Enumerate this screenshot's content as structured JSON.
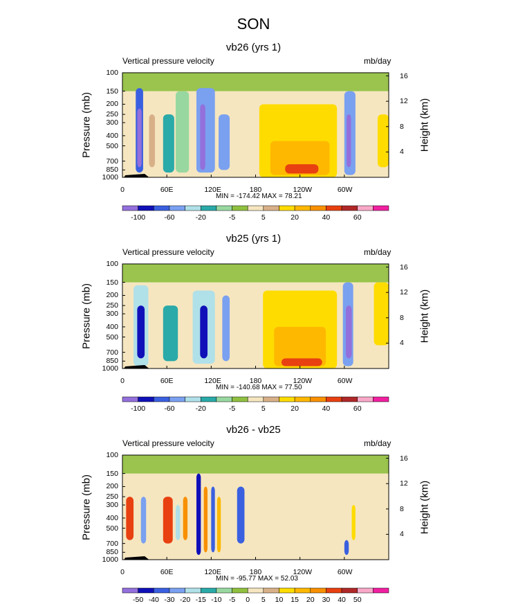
{
  "figure": {
    "title": "SON",
    "colors": {
      "scale_a": [
        "#9370db",
        "#1010b8",
        "#3a60e0",
        "#7aa0f0",
        "#b0e0e8",
        "#2aaaa8",
        "#98d8a0",
        "#90c040",
        "#f5e6c0",
        "#d8b088",
        "#ffdc00",
        "#ffb800",
        "#f89000",
        "#e84010",
        "#b02828",
        "#f8a8c8",
        "#f020a0"
      ],
      "scale_b": [
        "#9370db",
        "#1010b8",
        "#3a60e0",
        "#7aa0f0",
        "#b0e0e8",
        "#2aaaa8",
        "#98d8a0",
        "#90c040",
        "#f5e6c0",
        "#d8b088",
        "#ffdc00",
        "#ffb800",
        "#f89000",
        "#e84010",
        "#b02828",
        "#f8a8c8",
        "#f020a0"
      ]
    }
  },
  "chart_data": [
    {
      "type": "heatmap",
      "title": "vb26 (yrs 1)",
      "left_label": "Vertical pressure velocity",
      "right_label": "mb/day",
      "xlabel": "",
      "ylabel": "Pressure (mb)",
      "ylabel_right": "Height (km)",
      "x_ticks": [
        "0",
        "60E",
        "120E",
        "180",
        "120W",
        "60W"
      ],
      "y_ticks": [
        "100",
        "150",
        "200",
        "250",
        "300",
        "400",
        "500",
        "700",
        "850",
        "1000"
      ],
      "y_right_ticks": [
        "16",
        "12",
        "8",
        "4"
      ],
      "stats": "MIN = -174.42  MAX =  78.21",
      "colorbar_labels": [
        "-100",
        "-60",
        "-20",
        "-5",
        "5",
        "20",
        "40",
        "60"
      ],
      "regions": [
        {
          "lon": [
            18,
            28
          ],
          "p": [
            140,
            900
          ],
          "v": -80
        },
        {
          "lon": [
            20,
            26
          ],
          "p": [
            220,
            800
          ],
          "v": -150
        },
        {
          "lon": [
            36,
            44
          ],
          "p": [
            250,
            800
          ],
          "v": 10
        },
        {
          "lon": [
            55,
            70
          ],
          "p": [
            250,
            900
          ],
          "v": -20
        },
        {
          "lon": [
            72,
            90
          ],
          "p": [
            150,
            900
          ],
          "v": -10
        },
        {
          "lon": [
            100,
            125
          ],
          "p": [
            140,
            900
          ],
          "v": -60
        },
        {
          "lon": [
            105,
            112
          ],
          "p": [
            200,
            850
          ],
          "v": -120
        },
        {
          "lon": [
            130,
            145
          ],
          "p": [
            250,
            850
          ],
          "v": -60
        },
        {
          "lon": [
            185,
            290
          ],
          "p": [
            200,
            1000
          ],
          "v": 15
        },
        {
          "lon": [
            200,
            280
          ],
          "p": [
            450,
            950
          ],
          "v": 25
        },
        {
          "lon": [
            220,
            265
          ],
          "p": [
            750,
            920
          ],
          "v": 45
        },
        {
          "lon": [
            300,
            315
          ],
          "p": [
            150,
            950
          ],
          "v": -60
        },
        {
          "lon": [
            303,
            309
          ],
          "p": [
            250,
            800
          ],
          "v": -120
        },
        {
          "lon": [
            345,
            360
          ],
          "p": [
            250,
            800
          ],
          "v": 15
        }
      ]
    },
    {
      "type": "heatmap",
      "title": "vb25 (yrs 1)",
      "left_label": "Vertical pressure velocity",
      "right_label": "mb/day",
      "xlabel": "",
      "ylabel": "Pressure (mb)",
      "ylabel_right": "Height (km)",
      "x_ticks": [
        "0",
        "60E",
        "120E",
        "180",
        "120W",
        "60W"
      ],
      "y_ticks": [
        "100",
        "150",
        "200",
        "250",
        "300",
        "400",
        "500",
        "700",
        "850",
        "1000"
      ],
      "y_right_ticks": [
        "16",
        "12",
        "8",
        "4"
      ],
      "stats": "MIN = -140.68  MAX =  77.50",
      "colorbar_labels": [
        "-100",
        "-60",
        "-20",
        "-5",
        "5",
        "20",
        "40",
        "60"
      ],
      "regions": [
        {
          "lon": [
            15,
            35
          ],
          "p": [
            160,
            950
          ],
          "v": -50
        },
        {
          "lon": [
            20,
            30
          ],
          "p": [
            250,
            800
          ],
          "v": -110
        },
        {
          "lon": [
            55,
            75
          ],
          "p": [
            250,
            850
          ],
          "v": -20
        },
        {
          "lon": [
            95,
            125
          ],
          "p": [
            180,
            900
          ],
          "v": -50
        },
        {
          "lon": [
            105,
            115
          ],
          "p": [
            250,
            800
          ],
          "v": -100
        },
        {
          "lon": [
            135,
            145
          ],
          "p": [
            200,
            850
          ],
          "v": -60
        },
        {
          "lon": [
            190,
            290
          ],
          "p": [
            180,
            1000
          ],
          "v": 15
        },
        {
          "lon": [
            205,
            275
          ],
          "p": [
            400,
            950
          ],
          "v": 25
        },
        {
          "lon": [
            215,
            270
          ],
          "p": [
            800,
            950
          ],
          "v": 45
        },
        {
          "lon": [
            298,
            312
          ],
          "p": [
            150,
            950
          ],
          "v": -70
        },
        {
          "lon": [
            302,
            310
          ],
          "p": [
            250,
            800
          ],
          "v": -120
        },
        {
          "lon": [
            340,
            360
          ],
          "p": [
            150,
            600
          ],
          "v": 12
        }
      ]
    },
    {
      "type": "heatmap",
      "title": "vb26 - vb25",
      "left_label": "Vertical pressure velocity",
      "right_label": "mb/day",
      "xlabel": "",
      "ylabel": "Pressure (mb)",
      "ylabel_right": "Height (km)",
      "x_ticks": [
        "0",
        "60E",
        "120E",
        "180",
        "120W",
        "60W"
      ],
      "y_ticks": [
        "100",
        "150",
        "200",
        "250",
        "300",
        "400",
        "500",
        "700",
        "850",
        "1000"
      ],
      "y_right_ticks": [
        "16",
        "12",
        "8",
        "4"
      ],
      "stats": "MIN = -95.77  MAX =  52.03",
      "colorbar_labels": [
        "-50",
        "-40",
        "-30",
        "-20",
        "-15",
        "-10",
        "-5",
        "0",
        "5",
        "10",
        "15",
        "20",
        "30",
        "40",
        "50"
      ],
      "regions": [
        {
          "lon": [
            5,
            15
          ],
          "p": [
            250,
            650
          ],
          "v": 35
        },
        {
          "lon": [
            25,
            32
          ],
          "p": [
            250,
            700
          ],
          "v": -20
        },
        {
          "lon": [
            55,
            68
          ],
          "p": [
            250,
            700
          ],
          "v": 35
        },
        {
          "lon": [
            72,
            78
          ],
          "p": [
            300,
            650
          ],
          "v": -15
        },
        {
          "lon": [
            82,
            88
          ],
          "p": [
            250,
            650
          ],
          "v": 25
        },
        {
          "lon": [
            100,
            106
          ],
          "p": [
            150,
            900
          ],
          "v": -40
        },
        {
          "lon": [
            110,
            115
          ],
          "p": [
            200,
            850
          ],
          "v": 30
        },
        {
          "lon": [
            120,
            125
          ],
          "p": [
            200,
            850
          ],
          "v": -30
        },
        {
          "lon": [
            128,
            133
          ],
          "p": [
            250,
            850
          ],
          "v": 20
        },
        {
          "lon": [
            155,
            165
          ],
          "p": [
            200,
            700
          ],
          "v": -30
        },
        {
          "lon": [
            300,
            306
          ],
          "p": [
            650,
            900
          ],
          "v": -35
        },
        {
          "lon": [
            310,
            315
          ],
          "p": [
            300,
            650
          ],
          "v": 15
        }
      ]
    }
  ]
}
